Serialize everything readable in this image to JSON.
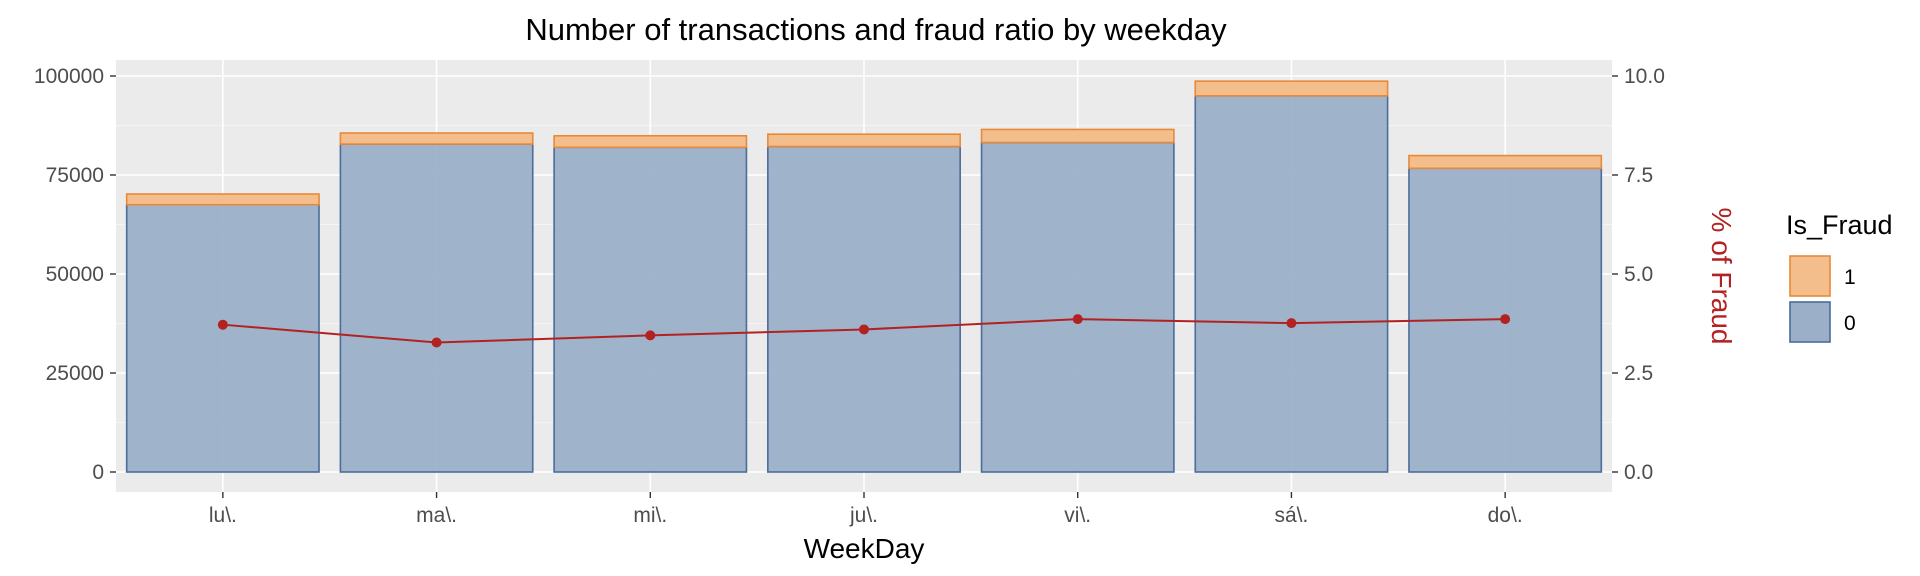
{
  "chart_data": {
    "type": "bar",
    "title": "Number of transactions and fraud ratio by weekday",
    "xlabel": "WeekDay",
    "ylabel": "",
    "y2label": "% of Fraud",
    "categories": [
      "lu\\.",
      "ma\\.",
      "mi\\.",
      "ju\\.",
      "vi\\.",
      "sá\\.",
      "do\\."
    ],
    "ylim": [
      0,
      100000
    ],
    "y_ticks": [
      "0",
      "25000",
      "50000",
      "75000",
      "100000"
    ],
    "y2lim": [
      0,
      10
    ],
    "y2_ticks": [
      "0.0",
      "2.5",
      "5.0",
      "7.5",
      "10.0"
    ],
    "stacked": true,
    "series": [
      {
        "name": "0",
        "values": [
          67500,
          82800,
          82000,
          82200,
          83200,
          95000,
          76700
        ]
      },
      {
        "name": "1",
        "values": [
          2700,
          2800,
          2900,
          3100,
          3300,
          3700,
          3200
        ]
      }
    ],
    "line_series": {
      "name": "% of Fraud",
      "axis": "right",
      "values": [
        3.72,
        3.27,
        3.45,
        3.6,
        3.86,
        3.76,
        3.86
      ]
    },
    "legend": {
      "title": "Is_Fraud",
      "position": "right",
      "entries": [
        "1",
        "0"
      ]
    },
    "grid": true,
    "colors": {
      "bar_0_fill": "#9bb0c8",
      "bar_0_stroke": "#4a6d99",
      "bar_1_fill": "#f4be8c",
      "bar_1_stroke": "#e8893a",
      "line": "#b22222",
      "y2_title": "#b22222",
      "panel": "#ebebeb",
      "grid": "#ffffff"
    }
  }
}
